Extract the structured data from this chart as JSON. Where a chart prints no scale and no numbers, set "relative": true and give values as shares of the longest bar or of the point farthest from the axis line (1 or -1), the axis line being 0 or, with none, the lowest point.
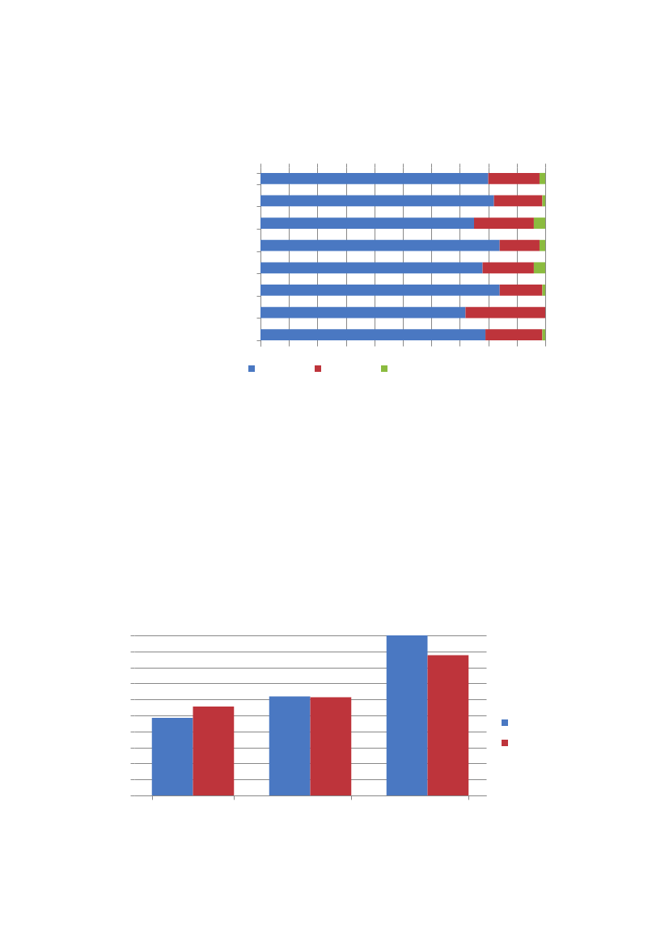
{
  "chart_data": [
    {
      "type": "bar",
      "orientation": "horizontal",
      "stacked": true,
      "relative": true,
      "grid": "x",
      "categories": [
        null,
        null,
        null,
        null,
        null,
        null,
        null,
        null
      ],
      "series": [
        {
          "color": "#4a78c2",
          "values": [
            0.8,
            0.82,
            0.75,
            0.84,
            0.78,
            0.84,
            0.72,
            0.79
          ]
        },
        {
          "color": "#be343b",
          "values": [
            0.18,
            0.17,
            0.21,
            0.14,
            0.18,
            0.15,
            0.28,
            0.2
          ]
        },
        {
          "color": "#8bbb3f",
          "values": [
            0.02,
            0.01,
            0.04,
            0.02,
            0.04,
            0.01,
            0,
            0.01
          ]
        }
      ]
    },
    {
      "type": "bar",
      "relative": true,
      "grid": "y",
      "categories": [
        null,
        null,
        null
      ],
      "series": [
        {
          "color": "#4a78c2",
          "values": [
            0.485,
            0.619,
            1
          ]
        },
        {
          "color": "#be343b",
          "values": [
            0.555,
            0.614,
            0.876
          ]
        }
      ]
    }
  ]
}
